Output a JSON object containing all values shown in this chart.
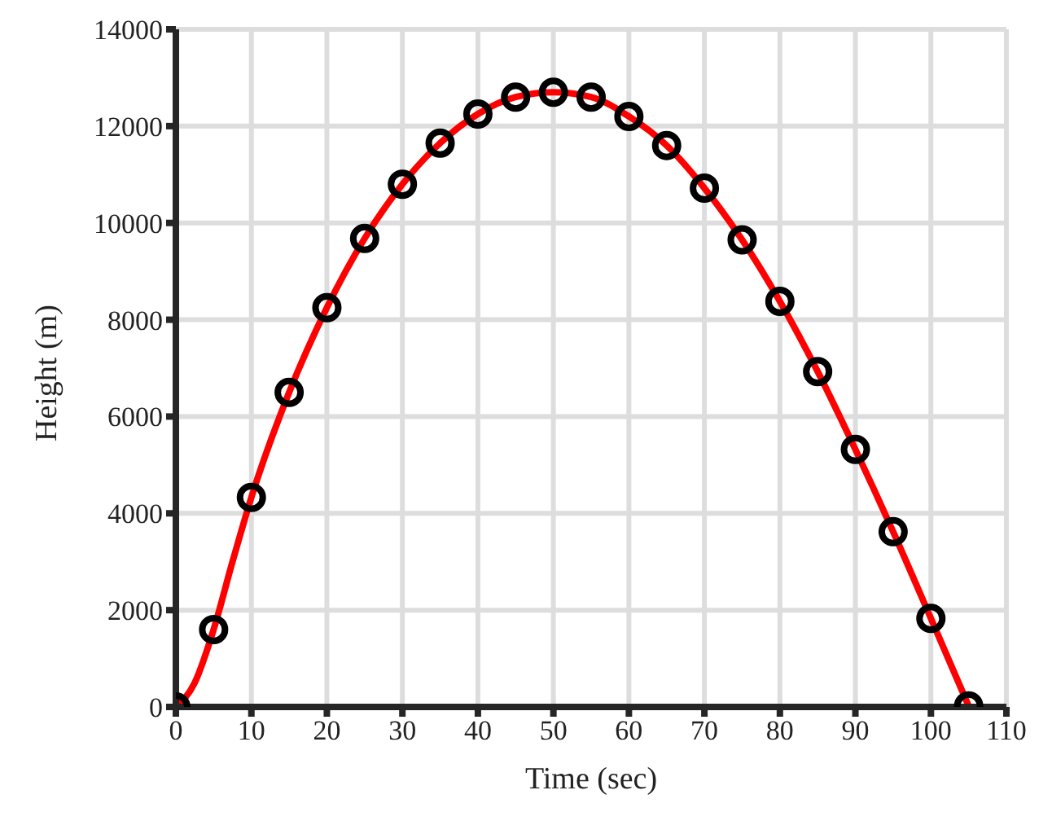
{
  "chart_data": {
    "type": "line",
    "xlabel": "Time (sec)",
    "ylabel": "Height (m)",
    "xlim": [
      0,
      110
    ],
    "xticks": [
      0,
      10,
      20,
      30,
      40,
      50,
      60,
      70,
      80,
      90,
      100,
      110
    ],
    "ylim": [
      0,
      14000
    ],
    "yticks": [
      0,
      2000,
      4000,
      6000,
      8000,
      10000,
      12000,
      14000
    ],
    "grid": true,
    "series": [
      {
        "color": "#ff0000",
        "marker": "none",
        "line_style": "solid",
        "x": [
          0,
          2.5,
          5,
          7.5,
          10,
          15,
          20,
          25,
          30,
          35,
          40,
          45,
          50,
          55,
          60,
          65,
          70,
          75,
          80,
          85,
          90,
          95,
          100,
          105
        ],
        "values": [
          0,
          500,
          1600,
          3000,
          4330,
          6500,
          8250,
          9680,
          10800,
          11650,
          12250,
          12600,
          12700,
          12600,
          12200,
          11600,
          10720,
          9650,
          8380,
          6930,
          5320,
          3620,
          1830,
          20
        ]
      },
      {
        "type": "scatter",
        "color": "#000000",
        "marker": "circle",
        "x": [
          0,
          5,
          10,
          15,
          20,
          25,
          30,
          35,
          40,
          45,
          50,
          55,
          60,
          65,
          70,
          75,
          80,
          85,
          90,
          95,
          100,
          105
        ],
        "values": [
          0,
          1600,
          4330,
          6500,
          8250,
          9680,
          10800,
          11650,
          12250,
          12600,
          12700,
          12600,
          12200,
          11600,
          10720,
          9650,
          8380,
          6930,
          5320,
          3620,
          1830,
          20
        ]
      }
    ]
  }
}
